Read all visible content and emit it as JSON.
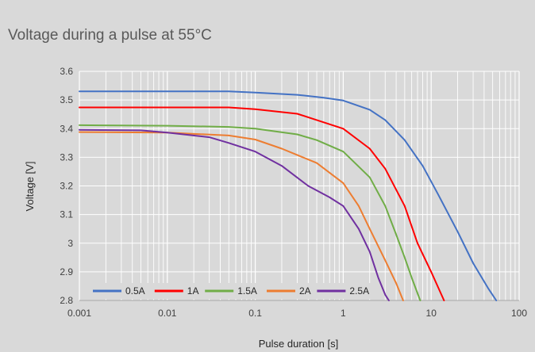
{
  "chart_data": {
    "type": "line",
    "title": "Voltage during a pulse at 55°C",
    "xlabel": "Pulse duration [s]",
    "ylabel": "Voltage [V]",
    "xscale": "log",
    "xlim": [
      0.001,
      100
    ],
    "ylim": [
      2.8,
      3.6
    ],
    "x_ticks": [
      0.001,
      0.01,
      0.1,
      1,
      10,
      100
    ],
    "x_tick_labels": [
      "0.001",
      "0.01",
      "0.1",
      "1",
      "10",
      "100"
    ],
    "y_ticks": [
      2.8,
      2.9,
      3,
      3.1,
      3.2,
      3.3,
      3.4,
      3.5,
      3.6
    ],
    "y_tick_labels": [
      "2.8",
      "2.9",
      "3",
      "3.1",
      "3.2",
      "3.3",
      "3.4",
      "3.5",
      "3.6"
    ],
    "grid": true,
    "legend_position": "bottom-left",
    "series": [
      {
        "name": "0.5A",
        "color": "#4472c4",
        "points": [
          [
            0.001,
            3.53
          ],
          [
            0.01,
            3.53
          ],
          [
            0.05,
            3.53
          ],
          [
            0.1,
            3.526
          ],
          [
            0.3,
            3.518
          ],
          [
            0.6,
            3.508
          ],
          [
            1,
            3.498
          ],
          [
            2,
            3.466
          ],
          [
            3,
            3.43
          ],
          [
            5,
            3.36
          ],
          [
            8,
            3.27
          ],
          [
            12,
            3.17
          ],
          [
            20,
            3.04
          ],
          [
            30,
            2.93
          ],
          [
            45,
            2.84
          ],
          [
            55,
            2.8
          ]
        ]
      },
      {
        "name": "1A",
        "color": "#ff0000",
        "points": [
          [
            0.001,
            3.474
          ],
          [
            0.01,
            3.474
          ],
          [
            0.05,
            3.474
          ],
          [
            0.1,
            3.468
          ],
          [
            0.3,
            3.452
          ],
          [
            0.5,
            3.43
          ],
          [
            1,
            3.4
          ],
          [
            2,
            3.33
          ],
          [
            3,
            3.26
          ],
          [
            5,
            3.13
          ],
          [
            7,
            3.0
          ],
          [
            10,
            2.9
          ],
          [
            14,
            2.8
          ]
        ]
      },
      {
        "name": "1.5A",
        "color": "#70ad47",
        "points": [
          [
            0.001,
            3.412
          ],
          [
            0.01,
            3.41
          ],
          [
            0.05,
            3.406
          ],
          [
            0.1,
            3.4
          ],
          [
            0.3,
            3.38
          ],
          [
            0.5,
            3.36
          ],
          [
            1,
            3.32
          ],
          [
            2,
            3.23
          ],
          [
            3,
            3.13
          ],
          [
            4,
            3.03
          ],
          [
            5,
            2.95
          ],
          [
            6,
            2.88
          ],
          [
            7.5,
            2.8
          ]
        ]
      },
      {
        "name": "2A",
        "color": "#ed7d31",
        "points": [
          [
            0.001,
            3.388
          ],
          [
            0.01,
            3.386
          ],
          [
            0.05,
            3.376
          ],
          [
            0.1,
            3.362
          ],
          [
            0.2,
            3.33
          ],
          [
            0.5,
            3.28
          ],
          [
            1,
            3.21
          ],
          [
            1.5,
            3.13
          ],
          [
            2,
            3.05
          ],
          [
            3,
            2.94
          ],
          [
            4,
            2.86
          ],
          [
            4.8,
            2.8
          ]
        ]
      },
      {
        "name": "2.5A",
        "color": "#7030a0",
        "points": [
          [
            0.001,
            3.396
          ],
          [
            0.005,
            3.394
          ],
          [
            0.01,
            3.386
          ],
          [
            0.03,
            3.37
          ],
          [
            0.05,
            3.35
          ],
          [
            0.1,
            3.32
          ],
          [
            0.2,
            3.27
          ],
          [
            0.4,
            3.2
          ],
          [
            0.7,
            3.16
          ],
          [
            1,
            3.13
          ],
          [
            1.5,
            3.05
          ],
          [
            2,
            2.97
          ],
          [
            2.5,
            2.88
          ],
          [
            3,
            2.82
          ],
          [
            3.3,
            2.8
          ]
        ]
      }
    ]
  }
}
